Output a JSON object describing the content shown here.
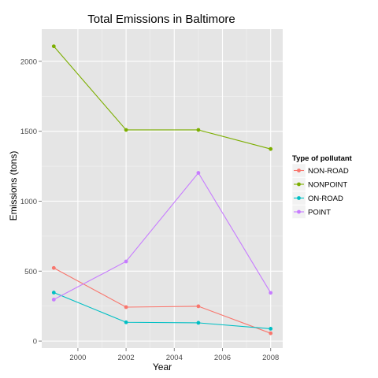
{
  "chart_data": {
    "type": "line",
    "title": "Total Emissions in Baltimore",
    "xlabel": "Year",
    "ylabel": "Emissions (tons)",
    "x": [
      1999,
      2002,
      2005,
      2008
    ],
    "xlim": [
      1998.5,
      2008.5
    ],
    "ylim": [
      -50,
      2230
    ],
    "xticks": [
      2000,
      2002,
      2004,
      2006,
      2008
    ],
    "yticks": [
      0,
      500,
      1000,
      1500,
      2000
    ],
    "grid": true,
    "legend": {
      "title": "Type of pollutant",
      "position": "right"
    },
    "series": [
      {
        "name": "NON-ROAD",
        "color": "#f8766d",
        "values": [
          522.94,
          242.77,
          248.93,
          55.82
        ]
      },
      {
        "name": "NONPOINT",
        "color": "#7cae00",
        "values": [
          2107.62,
          1509.5,
          1509.5,
          1373.21
        ]
      },
      {
        "name": "ON-ROAD",
        "color": "#00bfc4",
        "values": [
          346.82,
          134.31,
          130.43,
          88.28
        ]
      },
      {
        "name": "POINT",
        "color": "#c77cff",
        "values": [
          296.8,
          569.26,
          1202.49,
          344.98
        ]
      }
    ]
  }
}
